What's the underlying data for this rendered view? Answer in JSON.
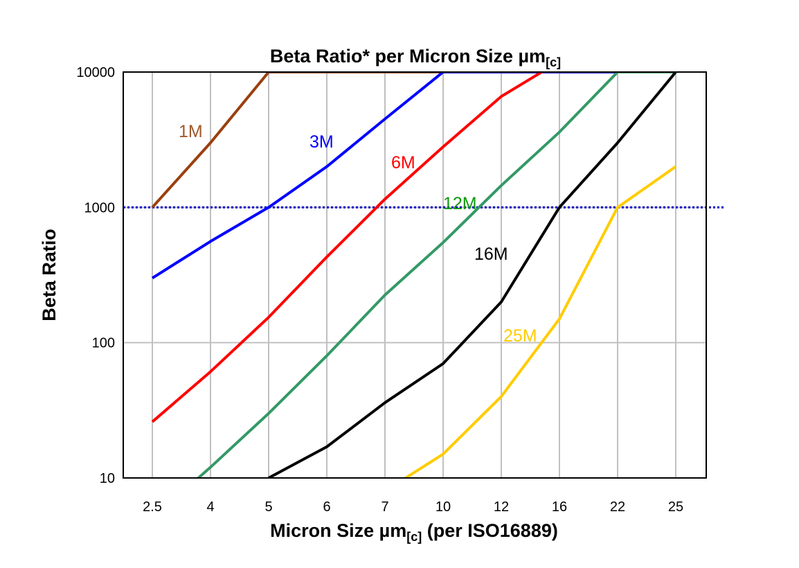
{
  "chart_data": {
    "type": "line",
    "title": "Beta Ratio* per Micron Size µm",
    "title_subscript": "[c]",
    "xlabel": "Micron Size µm",
    "xlabel_subscript": "[c]",
    "xlabel_suffix": " (per ISO16889)",
    "ylabel": "Beta Ratio",
    "y_scale": "log",
    "ylim": [
      10,
      10000
    ],
    "y_ticks": [
      "10",
      "100",
      "1000",
      "10000"
    ],
    "grid": true,
    "categories": [
      "2.5",
      "4",
      "5",
      "6",
      "7",
      "10",
      "12",
      "16",
      "22",
      "25"
    ],
    "reference_line": {
      "y": 1000,
      "color": "#0000cc",
      "style": "dotted"
    },
    "series": [
      {
        "name": "1M",
        "color": "#9b3f0f",
        "label_color": "#a0582a",
        "values": [
          1000,
          3000,
          10000,
          10000,
          10000,
          10000,
          null,
          null,
          null,
          null
        ]
      },
      {
        "name": "3M",
        "color": "#0000ff",
        "label_color": "#0000ff",
        "values": [
          300,
          560,
          1000,
          2000,
          4500,
          10000,
          10000,
          10000,
          10000,
          null
        ]
      },
      {
        "name": "6M",
        "color": "#ff0000",
        "label_color": "#ff0000",
        "values": [
          26,
          61,
          154,
          430,
          1150,
          2800,
          6600,
          12000,
          null,
          null
        ]
      },
      {
        "name": "12M",
        "color": "#339966",
        "label_color": "#119911",
        "values": [
          5,
          12,
          30,
          80,
          225,
          550,
          1450,
          3600,
          10000,
          10000
        ]
      },
      {
        "name": "16M",
        "color": "#000000",
        "label_color": "#000000",
        "values": [
          null,
          null,
          10,
          17,
          36,
          70,
          200,
          1000,
          3000,
          10000
        ]
      },
      {
        "name": "25M",
        "color": "#ffcc00",
        "label_color": "#ffcc00",
        "values": [
          null,
          null,
          null,
          null,
          8,
          15,
          40,
          150,
          1000,
          2000
        ]
      }
    ]
  }
}
